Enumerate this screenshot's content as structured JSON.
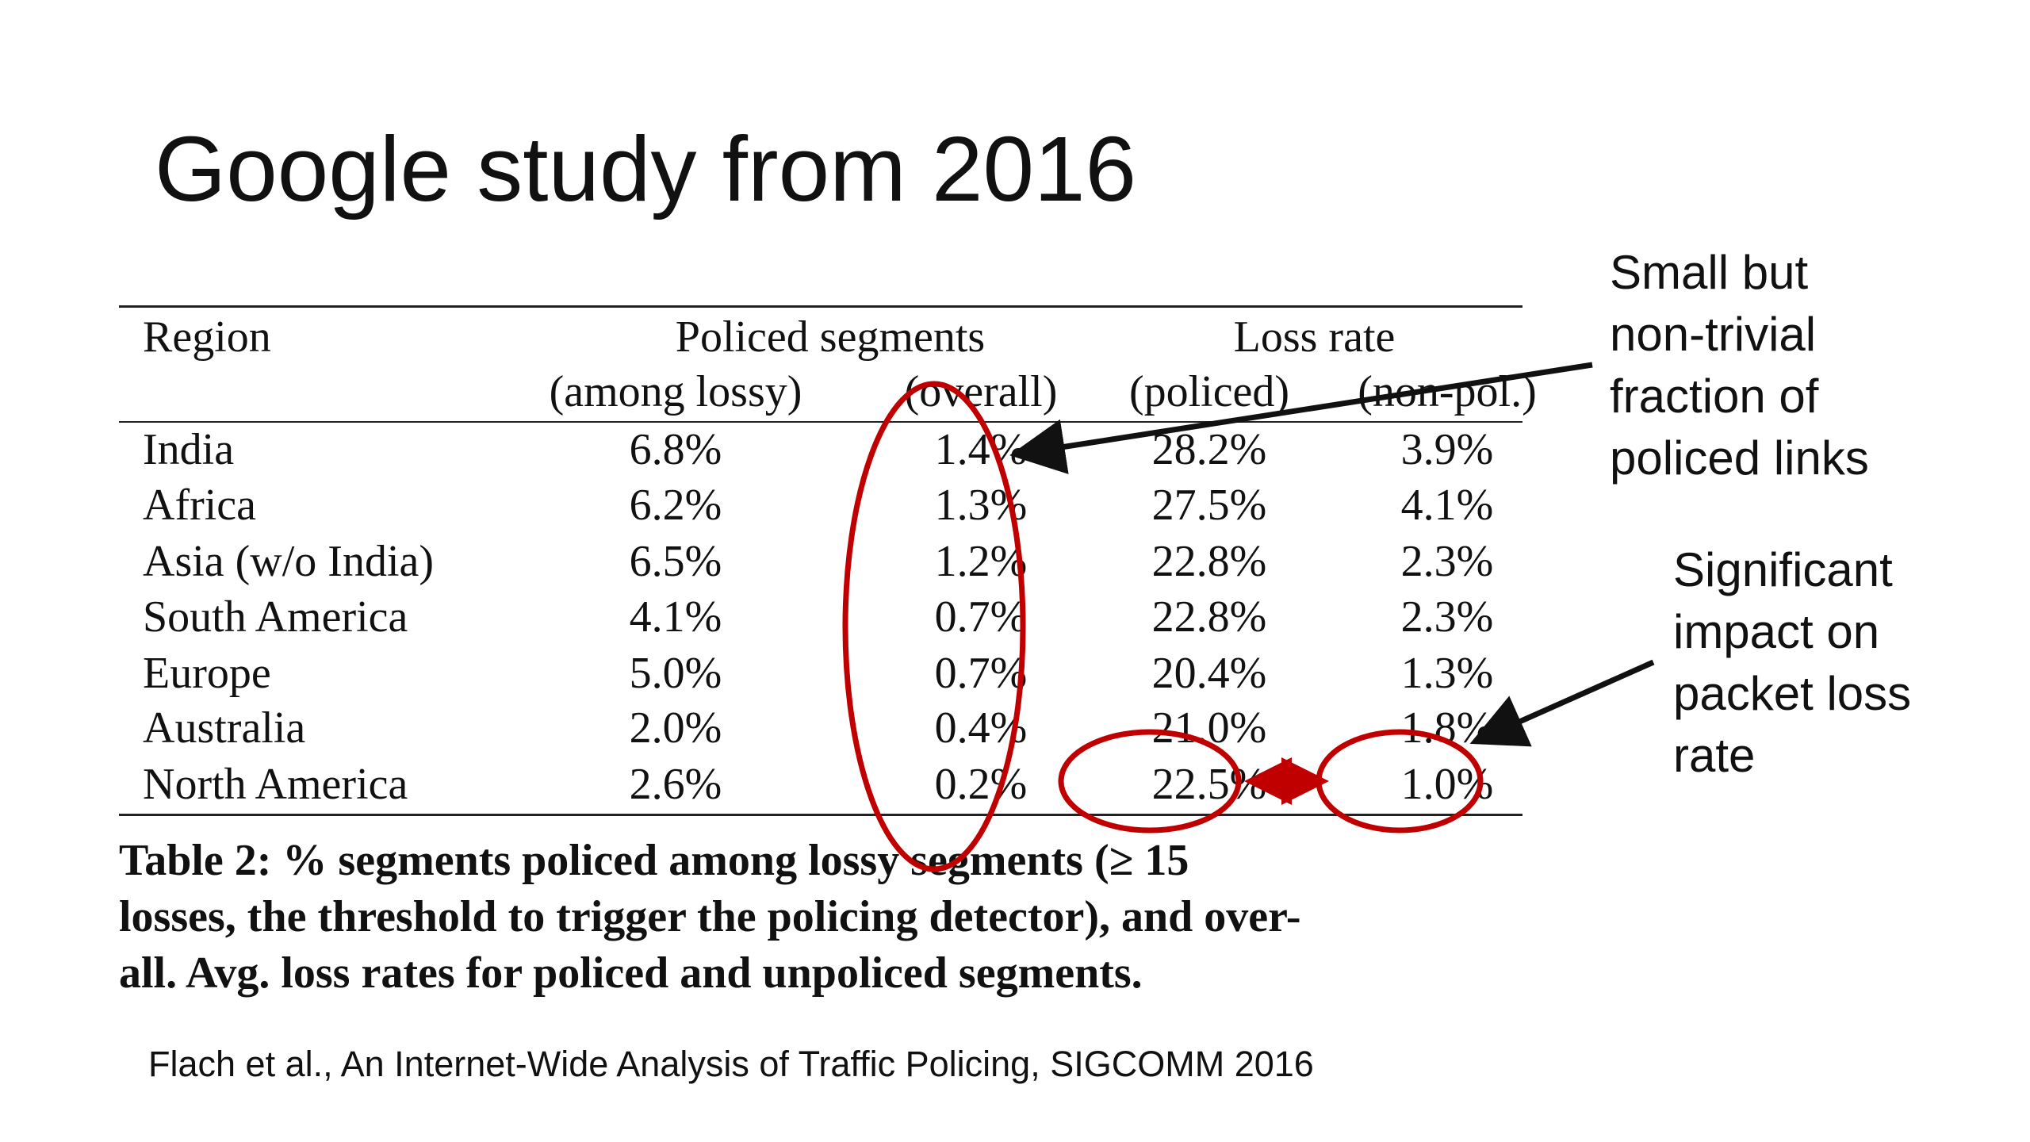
{
  "slide": {
    "title": "Google study from 2016",
    "citation": "Flach et al., An Internet-Wide Analysis of Traffic Policing, SIGCOMM 2016"
  },
  "table": {
    "headers": {
      "region": "Region",
      "group_policed": "Policed segments",
      "group_loss": "Loss rate",
      "sub_among_lossy": "(among lossy)",
      "sub_overall": "(overall)",
      "sub_policed": "(policed)",
      "sub_non_pol": "(non-pol.)"
    },
    "rows": [
      {
        "region": "India",
        "among_lossy": "6.8%",
        "overall": "1.4%",
        "loss_policed": "28.2%",
        "loss_non_pol": "3.9%"
      },
      {
        "region": "Africa",
        "among_lossy": "6.2%",
        "overall": "1.3%",
        "loss_policed": "27.5%",
        "loss_non_pol": "4.1%"
      },
      {
        "region": "Asia (w/o India)",
        "among_lossy": "6.5%",
        "overall": "1.2%",
        "loss_policed": "22.8%",
        "loss_non_pol": "2.3%"
      },
      {
        "region": "South America",
        "among_lossy": "4.1%",
        "overall": "0.7%",
        "loss_policed": "22.8%",
        "loss_non_pol": "2.3%"
      },
      {
        "region": "Europe",
        "among_lossy": "5.0%",
        "overall": "0.7%",
        "loss_policed": "20.4%",
        "loss_non_pol": "1.3%"
      },
      {
        "region": "Australia",
        "among_lossy": "2.0%",
        "overall": "0.4%",
        "loss_policed": "21.0%",
        "loss_non_pol": "1.8%"
      },
      {
        "region": "North America",
        "among_lossy": "2.6%",
        "overall": "0.2%",
        "loss_policed": "22.5%",
        "loss_non_pol": "1.0%"
      }
    ],
    "caption_lines": [
      "Table 2:  % segments policed among lossy segments (≥ 15",
      "losses, the threshold to trigger the policing detector), and over-",
      "all. Avg. loss rates for policed and unpoliced segments."
    ]
  },
  "annotations": {
    "note_small": [
      "Small but",
      "non-trivial",
      "fraction of",
      "policed links"
    ],
    "note_significant": [
      "Significant",
      "impact on",
      "packet loss",
      "rate"
    ],
    "highlight_color": "#c00000",
    "arrow_color": "#111111"
  }
}
